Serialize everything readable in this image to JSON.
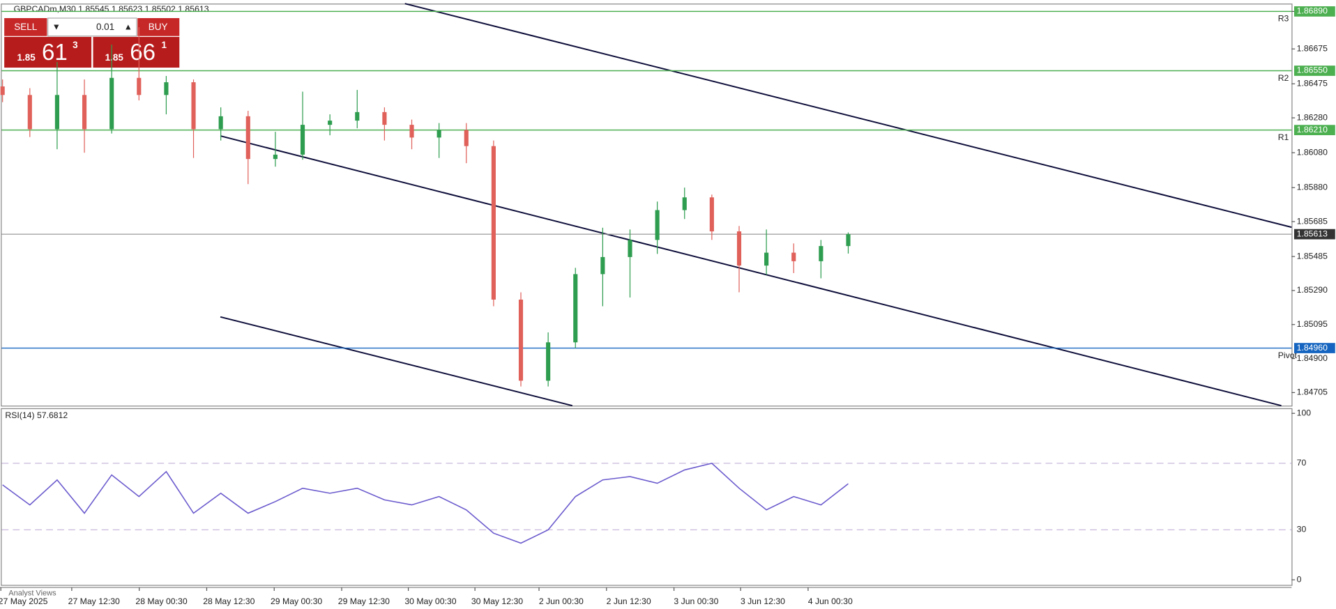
{
  "symbol_info": "GBPCADm,M30  1.85545 1.85623 1.85502 1.85613",
  "trade_panel": {
    "sell": "SELL",
    "buy": "BUY",
    "volume": "0.01",
    "bid_big": "1.85",
    "bid_main": "61",
    "bid_sup": "3",
    "ask_big": "1.85",
    "ask_main": "66",
    "ask_sup": "1"
  },
  "footer_tab": "Analyst Views",
  "chart_data": [
    {
      "type": "candlestick",
      "ylim": [
        1.8463,
        1.8693
      ],
      "yticks": [
        {
          "value": 1.8689,
          "label": "1.86890"
        },
        1.86675,
        1.86475,
        {
          "value": 1.8628,
          "label": "1.86280"
        },
        {
          "value": 1.8608,
          "label": "1.86080"
        },
        {
          "value": 1.8588,
          "label": "1.85880"
        },
        1.85685,
        1.85485,
        {
          "value": 1.8529,
          "label": "1.85290"
        },
        1.85095,
        {
          "value": 1.849,
          "label": "1.84900"
        },
        1.84705
      ],
      "x_labels": [
        "27 May 2025",
        "27 May 12:30",
        "28 May 00:30",
        "28 May 12:30",
        "29 May 00:30",
        "29 May 12:30",
        "30 May 00:30",
        "30 May 12:30",
        "2 Jun 00:30",
        "2 Jun 12:30",
        "3 Jun 00:30",
        "3 Jun 12:30",
        "4 Jun 00:30"
      ],
      "up_color": "#2e9d4f",
      "down_color": "#e0605a",
      "open": [
        1.8646,
        1.86411,
        1.86215,
        1.86411,
        1.86215,
        1.86509,
        1.86411,
        1.86484,
        1.86215,
        1.86289,
        1.86044,
        1.86069,
        1.8624,
        1.86264,
        1.86313,
        1.8624,
        1.86167,
        1.8621,
        1.86118,
        1.85238,
        1.84773,
        1.84993,
        1.85384,
        1.85482,
        1.8558,
        1.85751,
        1.85824,
        1.85629,
        1.85433,
        1.85507,
        1.85458,
        1.85545
      ],
      "high": [
        1.865,
        1.8645,
        1.866,
        1.865,
        1.867,
        1.868,
        1.8652,
        1.865,
        1.8634,
        1.8632,
        1.862,
        1.8643,
        1.863,
        1.8644,
        1.8634,
        1.8627,
        1.8625,
        1.8625,
        1.8615,
        1.8528,
        1.8505,
        1.8542,
        1.8565,
        1.8564,
        1.858,
        1.8588,
        1.8584,
        1.8566,
        1.8564,
        1.8556,
        1.8558,
        1.85623
      ],
      "low": [
        1.8637,
        1.8617,
        1.861,
        1.8608,
        1.8619,
        1.8638,
        1.863,
        1.8605,
        1.8615,
        1.859,
        1.86,
        1.8604,
        1.8618,
        1.8622,
        1.8615,
        1.861,
        1.8605,
        1.8602,
        1.852,
        1.8474,
        1.8474,
        1.8496,
        1.852,
        1.8525,
        1.855,
        1.857,
        1.8558,
        1.8528,
        1.8538,
        1.8539,
        1.8536,
        1.85502
      ],
      "close": [
        1.86411,
        1.86215,
        1.86411,
        1.86215,
        1.86509,
        1.86411,
        1.86484,
        1.86215,
        1.86289,
        1.86044,
        1.86069,
        1.8624,
        1.86264,
        1.86313,
        1.8624,
        1.86167,
        1.8621,
        1.86118,
        1.85238,
        1.84773,
        1.84993,
        1.85384,
        1.85482,
        1.8558,
        1.85751,
        1.85824,
        1.85629,
        1.85433,
        1.85507,
        1.85458,
        1.85545,
        1.85613
      ],
      "levels": [
        {
          "name": "R3",
          "value": 1.8689,
          "label": "1.86890",
          "color": "#4caf50"
        },
        {
          "name": "R2",
          "value": 1.8655,
          "label": "1.86550",
          "color": "#4caf50"
        },
        {
          "name": "R1",
          "value": 1.8621,
          "label": "1.86210",
          "color": "#4caf50"
        },
        {
          "name": "Pivot",
          "value": 1.8496,
          "label": "1.84960",
          "color": "#1565c0"
        }
      ],
      "current_price": {
        "value": 1.85613,
        "label": "1.85613",
        "color": "#333333"
      }
    },
    {
      "type": "line",
      "title": "RSI(14) 57.6812",
      "color": "#6a5acd",
      "ylim": [
        0,
        100
      ],
      "yticks": [
        100,
        70,
        30,
        0
      ],
      "values": [
        57,
        45,
        60,
        40,
        63,
        50,
        65,
        40,
        52,
        40,
        47,
        55,
        52,
        55,
        48,
        45,
        50,
        42,
        28,
        22,
        30,
        50,
        60,
        62,
        58,
        66,
        70,
        55,
        42,
        50,
        45,
        57.6812
      ]
    }
  ]
}
